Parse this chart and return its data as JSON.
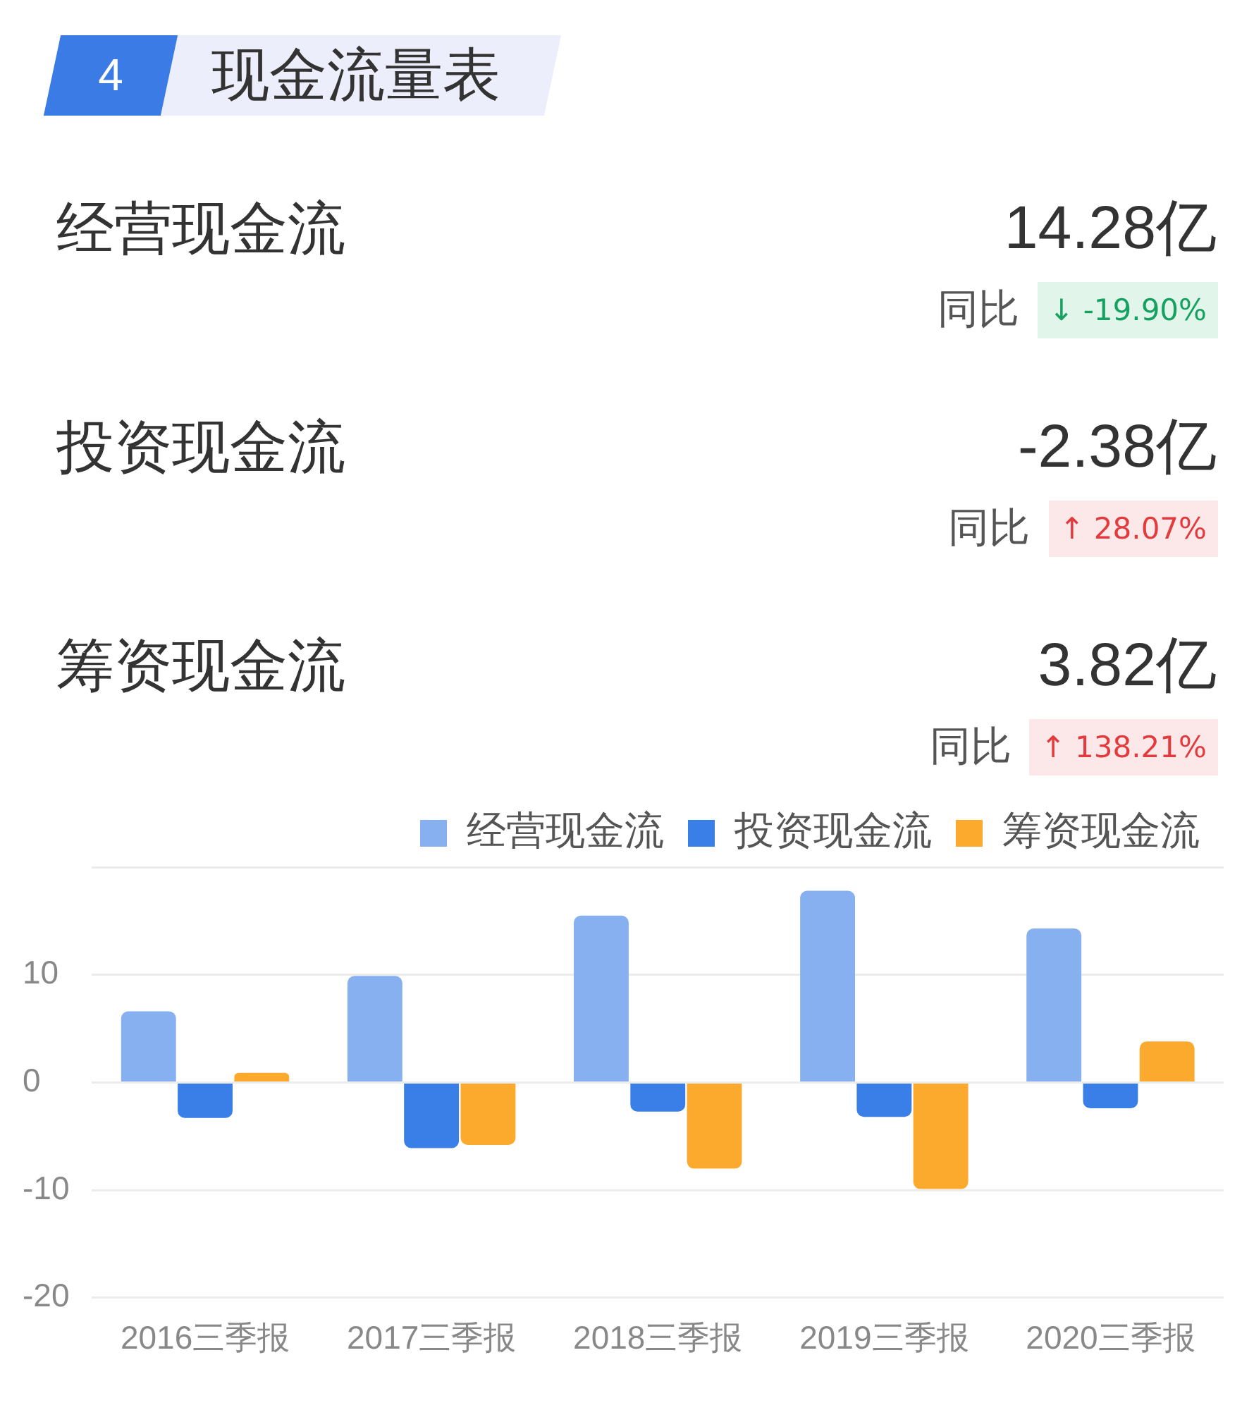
{
  "chart_data": [
    {
      "type": "other",
      "title": "现金流量表",
      "annotations": [
        "4",
        "经营现金流",
        "14.28亿",
        "同比",
        "↓ -19.90%",
        "投资现金流",
        "-2.38亿",
        "同比",
        "↑ 28.07%",
        "筹资现金流",
        "3.82亿",
        "同比",
        "↑ 138.21%"
      ]
    },
    {
      "type": "bar",
      "categories": [
        "2016三季报",
        "2017三季报",
        "2018三季报",
        "2019三季报",
        "2020三季报"
      ],
      "series": [
        {
          "name": "经营现金流",
          "color": "#86b0ef",
          "values": [
            6.6,
            9.9,
            15.5,
            17.8,
            14.3
          ]
        },
        {
          "name": "投资现金流",
          "color": "#3a7ee7",
          "values": [
            -3.3,
            -6.1,
            -2.7,
            -3.2,
            -2.4
          ]
        },
        {
          "name": "筹资现金流",
          "color": "#fcaa2e",
          "values": [
            0.9,
            -5.8,
            -8.0,
            -9.9,
            3.8
          ]
        }
      ],
      "ylim": [
        -20,
        20
      ],
      "yticks": [
        -20,
        -10,
        0,
        10,
        {
          "value": 20,
          "label": null
        }
      ],
      "grid": "y",
      "legend": "top right"
    }
  ]
}
